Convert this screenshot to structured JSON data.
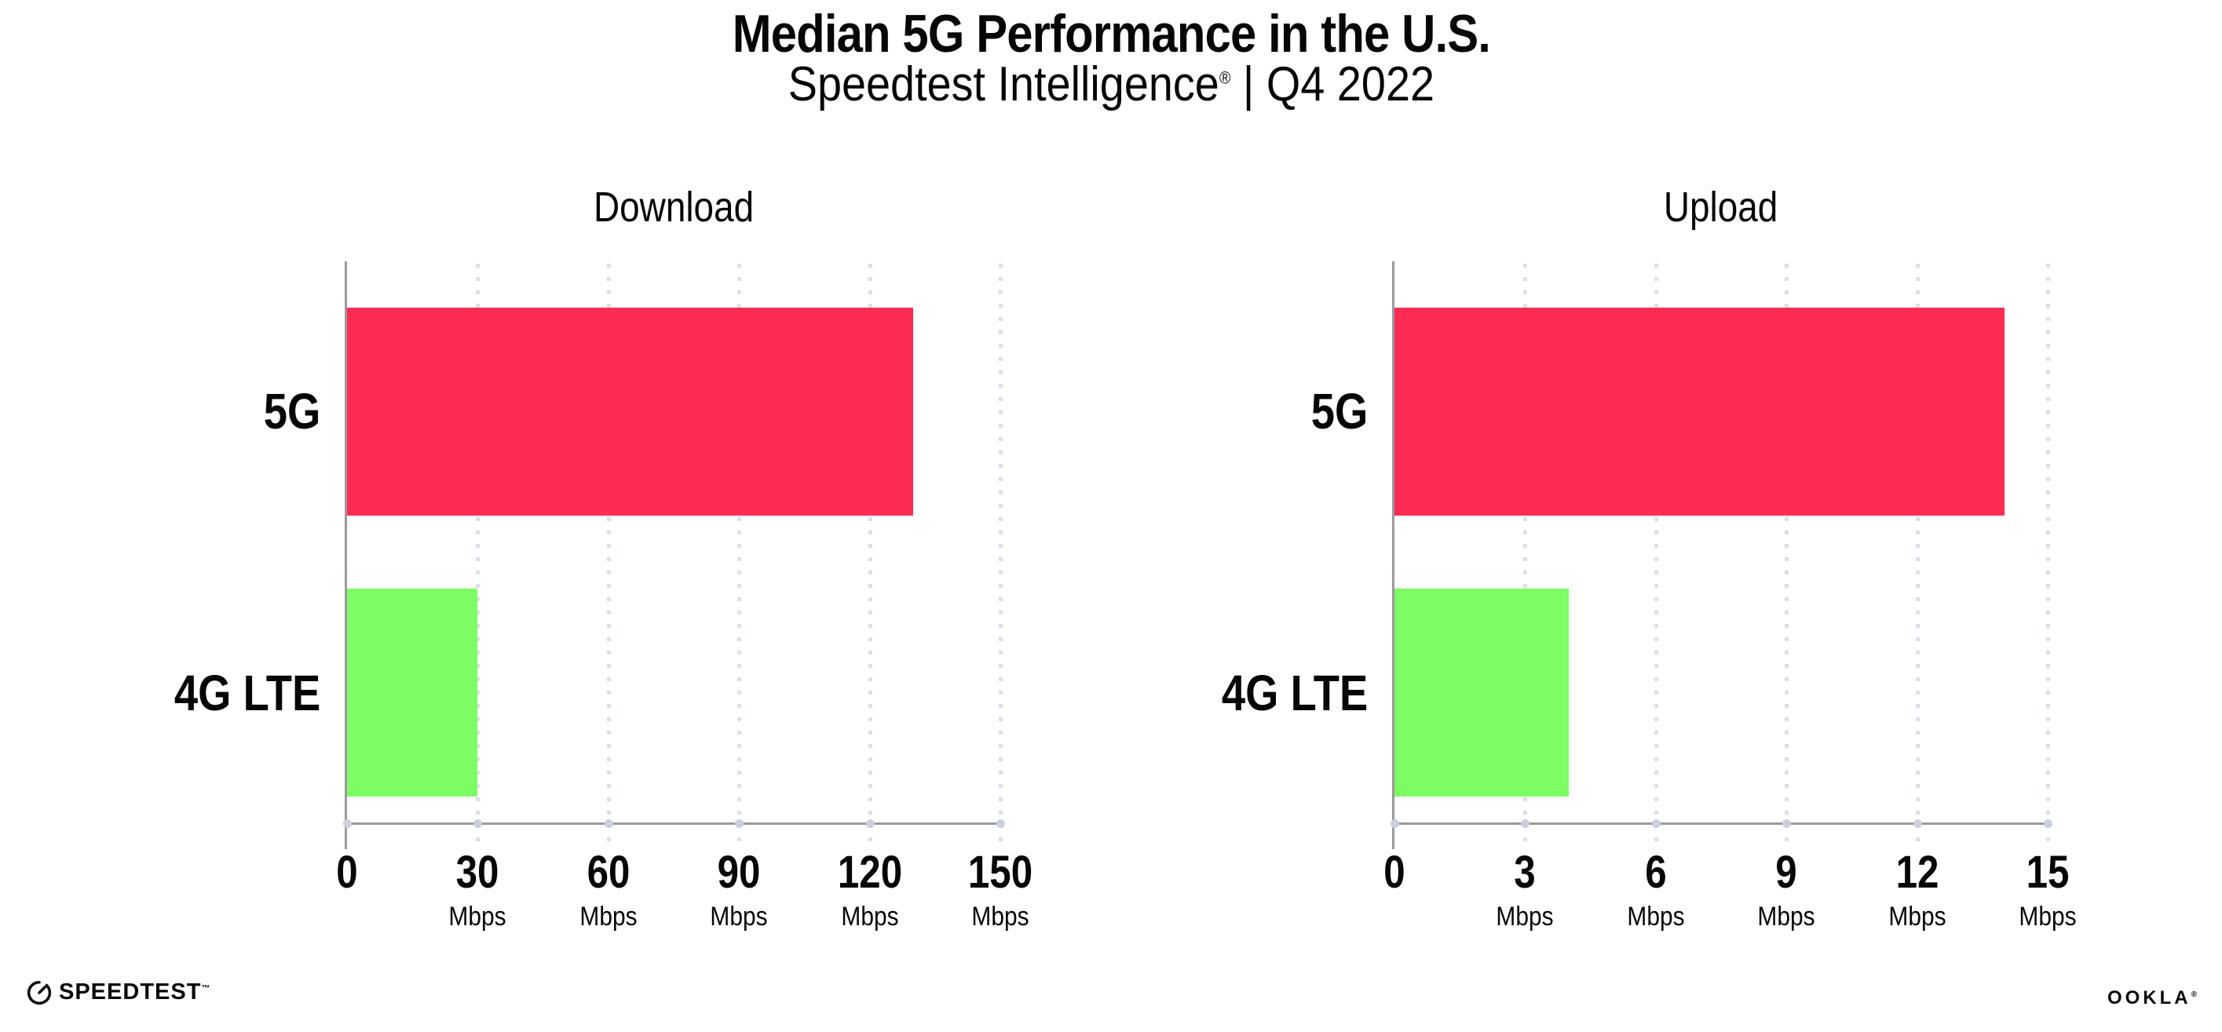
{
  "header": {
    "title": "Median 5G Performance in the U.S.",
    "subtitle_brand": "Speedtest Intelligence",
    "subtitle_reg": "®",
    "subtitle_rest": " | Q4 2022"
  },
  "colors": {
    "bar_5g": "#fe2c55",
    "bar_4g_lte": "#7dfc64",
    "axis": "#9a9a9a",
    "gridline": "#dcdeea",
    "text": "#060606"
  },
  "chart_data": [
    {
      "type": "bar",
      "orientation": "horizontal",
      "title": "Download",
      "categories": [
        "5G",
        "4G LTE"
      ],
      "values": [
        130,
        30
      ],
      "unit": "Mbps",
      "xlim": [
        0,
        150
      ],
      "xticks": [
        0,
        30,
        60,
        90,
        120,
        150
      ],
      "tick_unit": "Mbps",
      "colors": [
        "#fe2c55",
        "#7dfc64"
      ],
      "grid": "dotted-vertical",
      "legend": "none"
    },
    {
      "type": "bar",
      "orientation": "horizontal",
      "title": "Upload",
      "categories": [
        "5G",
        "4G LTE"
      ],
      "values": [
        14,
        4
      ],
      "unit": "Mbps",
      "xlim": [
        0,
        15
      ],
      "xticks": [
        0,
        3,
        6,
        9,
        12,
        15
      ],
      "tick_unit": "Mbps",
      "colors": [
        "#fe2c55",
        "#7dfc64"
      ],
      "grid": "dotted-vertical",
      "legend": "none"
    }
  ],
  "footer": {
    "speedtest_label": "SPEEDTEST",
    "speedtest_tm": "™",
    "ookla_label": "OOKLA",
    "ookla_reg": "®"
  }
}
